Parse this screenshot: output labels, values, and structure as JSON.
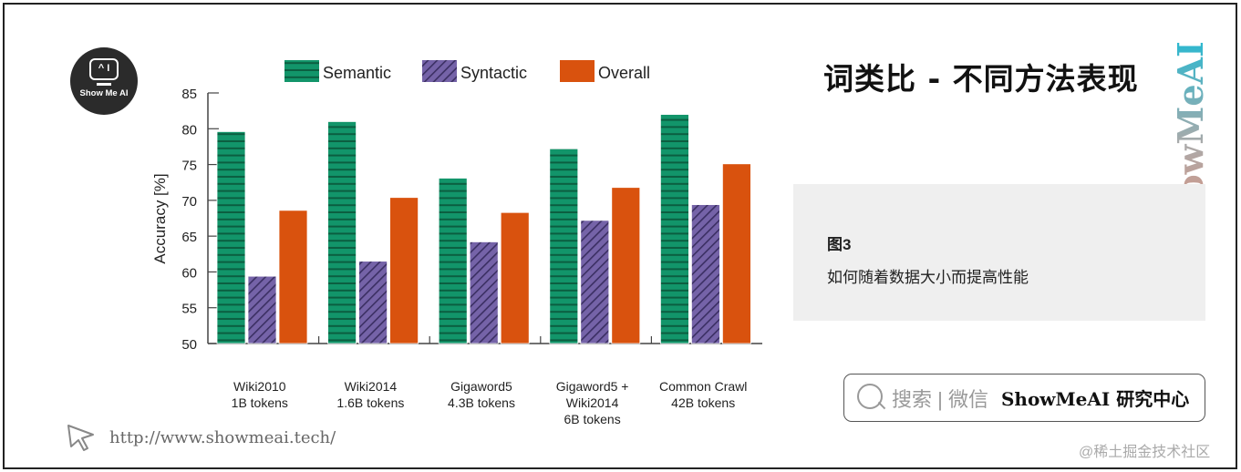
{
  "logo": {
    "text": "Show Me AI",
    "screen": "^ I"
  },
  "title": "词类比 - 不同方法表现",
  "watermark": "ShowMeAI",
  "card": {
    "heading": "图3",
    "description": "如何随着数据大小而提高性能"
  },
  "search": {
    "icon": "search-icon",
    "label": "搜索 | 微信",
    "brand": "ShowMeAI 研究中心"
  },
  "link": {
    "icon": "cursor-arrow-icon",
    "url": "http://www.showmeai.tech/"
  },
  "credit": "@稀土掘金技术社区",
  "chart_data": {
    "type": "bar",
    "ylabel": "Accuracy [%]",
    "ylim": [
      50,
      85
    ],
    "yticks": [
      50,
      55,
      60,
      65,
      70,
      75,
      80,
      85
    ],
    "legend_position": "top",
    "categories": [
      [
        "Wiki2010",
        "1B tokens"
      ],
      [
        "Wiki2014",
        "1.6B tokens"
      ],
      [
        "Gigaword5",
        "4.3B tokens"
      ],
      [
        "Gigaword5 +",
        "Wiki2014",
        "6B tokens"
      ],
      [
        "Common Crawl",
        "42B tokens"
      ]
    ],
    "series": [
      {
        "name": "Semantic",
        "color": "#12956a",
        "pattern": "horizontal-lines",
        "values": [
          79.6,
          81.0,
          73.1,
          77.2,
          82.0
        ]
      },
      {
        "name": "Syntactic",
        "color": "#7563a8",
        "pattern": "diagonal-hatch",
        "values": [
          59.4,
          61.5,
          64.2,
          67.2,
          69.4
        ]
      },
      {
        "name": "Overall",
        "color": "#d9520e",
        "pattern": "solid",
        "values": [
          68.6,
          70.4,
          68.3,
          71.8,
          75.1
        ]
      }
    ]
  }
}
